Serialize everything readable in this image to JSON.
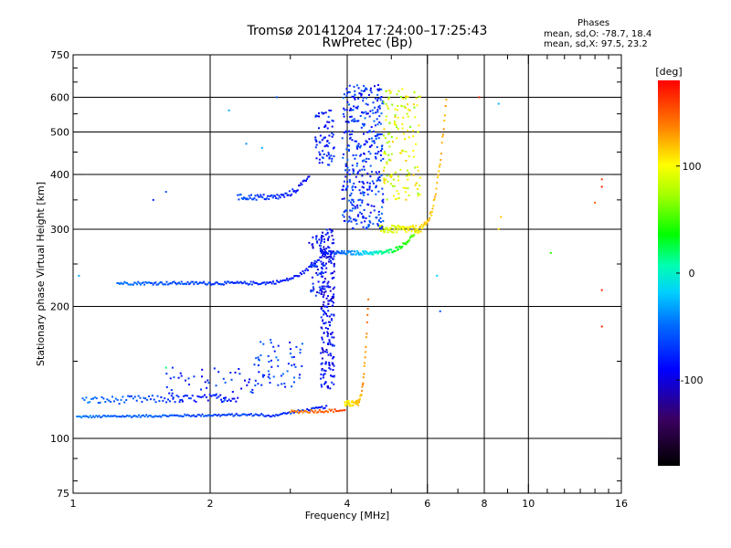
{
  "header": {
    "title_line_1": "Tromsø 20141204 17:24:00–17:25:43",
    "title_line_2": "RwPretec (Bp)",
    "stats_title": "Phases",
    "stats_line_1": "mean, sd,O: -78.7, 18.4",
    "stats_line_2": "mean, sd,X:  97.5, 23.2"
  },
  "chart_data": {
    "type": "scatter",
    "title": "Tromsø 20141204 17:24:00–17:25:43",
    "subtitle": "RwPretec (Bp)",
    "xlabel": "Frequency [MHz]",
    "ylabel": "Stationary phase Virtual Height [km]",
    "x_scale": "log",
    "y_scale": "log",
    "xlim": [
      1,
      16
    ],
    "ylim": [
      75,
      750
    ],
    "x_ticks": [
      1,
      2,
      4,
      6,
      8,
      10,
      16
    ],
    "x_tick_labels": [
      "1",
      "2",
      "4",
      "6",
      "8",
      "10",
      "16"
    ],
    "y_ticks": [
      75,
      100,
      200,
      300,
      400,
      500,
      600,
      750
    ],
    "y_tick_labels": [
      "75",
      "100",
      "200",
      "300",
      "400",
      "500",
      "600",
      "750"
    ],
    "grid": true,
    "colorbar": {
      "label": "[deg]",
      "range": [
        -180,
        180
      ],
      "ticks": [
        100,
        0,
        -100
      ],
      "tick_labels": [
        "100",
        "0",
        "-100"
      ]
    },
    "traces": [
      {
        "f0": 1.02,
        "f1": 3.6,
        "h0": 112,
        "h1": 118,
        "bend_start": 0.75,
        "curve": "flat",
        "phase": [
          -60,
          -90
        ],
        "n": 170,
        "jitter": 0.006
      },
      {
        "f0": 3.0,
        "f1": 3.95,
        "h0": 115,
        "h1": 118,
        "bend_start": 1.0,
        "curve": "flat",
        "phase": [
          140,
          160
        ],
        "n": 40,
        "jitter": 0.008
      },
      {
        "f0": 3.95,
        "f1": 4.45,
        "h0": 120,
        "h1": 210,
        "bend_start": 0.45,
        "curve": "up",
        "phase": [
          100,
          140
        ],
        "n": 60,
        "jitter": 0.015
      },
      {
        "f0": 1.05,
        "f1": 2.3,
        "h0": 122,
        "h1": 128,
        "bend_start": 1.0,
        "curve": "flat",
        "phase": [
          -60,
          -100
        ],
        "n": 90,
        "jitter": 0.02
      },
      {
        "f0": 1.25,
        "f1": 3.6,
        "h0": 226,
        "h1": 270,
        "bend_start": 0.65,
        "curve": "up",
        "phase": [
          -60,
          -100
        ],
        "n": 170,
        "jitter": 0.008
      },
      {
        "f0": 3.55,
        "f1": 5.7,
        "h0": 265,
        "h1": 300,
        "bend_start": 0.5,
        "curve": "up",
        "phase": [
          -95,
          60
        ],
        "n": 120,
        "jitter": 0.01
      },
      {
        "f0": 4.7,
        "f1": 6.6,
        "h0": 300,
        "h1": 600,
        "bend_start": 0.55,
        "curve": "up",
        "phase": [
          80,
          130
        ],
        "n": 110,
        "jitter": 0.02
      },
      {
        "f0": 2.3,
        "f1": 3.3,
        "h0": 355,
        "h1": 400,
        "bend_start": 0.4,
        "curve": "up",
        "phase": [
          -70,
          -100
        ],
        "n": 70,
        "jitter": 0.015
      }
    ],
    "clouds": [
      {
        "f": [
          3.5,
          3.75
        ],
        "h": [
          130,
          300
        ],
        "phase": [
          -120,
          -80
        ],
        "n": 220
      },
      {
        "f": [
          3.3,
          3.55
        ],
        "h": [
          210,
          290
        ],
        "phase": [
          -120,
          -70
        ],
        "n": 60
      },
      {
        "f": [
          3.9,
          4.8
        ],
        "h": [
          300,
          640
        ],
        "phase": [
          -110,
          -60
        ],
        "n": 380
      },
      {
        "f": [
          4.8,
          5.8
        ],
        "h": [
          350,
          630
        ],
        "phase": [
          60,
          120
        ],
        "n": 150
      },
      {
        "f": [
          3.4,
          3.75
        ],
        "h": [
          420,
          560
        ],
        "phase": [
          -110,
          -70
        ],
        "n": 70
      },
      {
        "f": [
          2.5,
          3.2
        ],
        "h": [
          130,
          170
        ],
        "phase": [
          -60,
          -100
        ],
        "n": 60
      },
      {
        "f": [
          1.6,
          2.6
        ],
        "h": [
          120,
          145
        ],
        "phase": [
          -60,
          -110
        ],
        "n": 50
      }
    ],
    "isolated_points": [
      {
        "x": 14.5,
        "y": 390,
        "phase": 160
      },
      {
        "x": 14.5,
        "y": 375,
        "phase": 170
      },
      {
        "x": 14.0,
        "y": 345,
        "phase": 150
      },
      {
        "x": 14.5,
        "y": 218,
        "phase": 170
      },
      {
        "x": 14.5,
        "y": 180,
        "phase": 170
      },
      {
        "x": 8.6,
        "y": 580,
        "phase": -40
      },
      {
        "x": 8.7,
        "y": 320,
        "phase": 120
      },
      {
        "x": 8.6,
        "y": 300,
        "phase": 110
      },
      {
        "x": 11.2,
        "y": 265,
        "phase": 40
      },
      {
        "x": 7.8,
        "y": 600,
        "phase": 170
      },
      {
        "x": 1.03,
        "y": 235,
        "phase": -40
      },
      {
        "x": 6.3,
        "y": 235,
        "phase": -30
      },
      {
        "x": 6.4,
        "y": 195,
        "phase": -70
      },
      {
        "x": 1.6,
        "y": 145,
        "phase": 10
      },
      {
        "x": 1.5,
        "y": 350,
        "phase": -90
      },
      {
        "x": 1.6,
        "y": 365,
        "phase": -70
      },
      {
        "x": 2.4,
        "y": 470,
        "phase": -50
      },
      {
        "x": 2.8,
        "y": 600,
        "phase": -70
      },
      {
        "x": 2.2,
        "y": 560,
        "phase": -40
      },
      {
        "x": 2.6,
        "y": 460,
        "phase": -40
      }
    ]
  }
}
